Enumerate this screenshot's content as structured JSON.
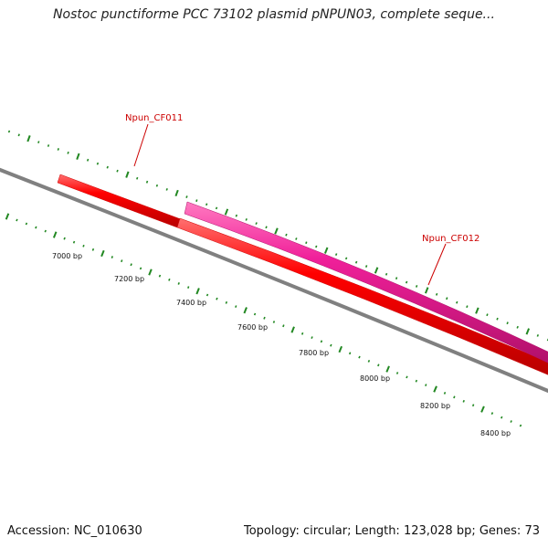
{
  "title": "Nostoc punctiforme PCC 73102 plasmid pNPUN03, complete seque...",
  "footer": {
    "accession": "Accession: NC_010630",
    "summary": "Topology: circular; Length: 123,028 bp; Genes: 73"
  },
  "colors": {
    "backbone": "#808080",
    "gene_forward": "#ee0000",
    "gene_reverse": "#ee1c8c",
    "ticks": "#228822",
    "label_text": "#cc0000"
  },
  "genes": [
    {
      "name": "Npun_CF011",
      "color": "#ee0000"
    },
    {
      "name": "Npun_CF012",
      "color": "#ee1c8c"
    }
  ],
  "bp_labels": [
    "7000 bp",
    "7200 bp",
    "7400 bp",
    "7600 bp",
    "7800 bp",
    "8000 bp",
    "8200 bp",
    "8400 bp"
  ]
}
